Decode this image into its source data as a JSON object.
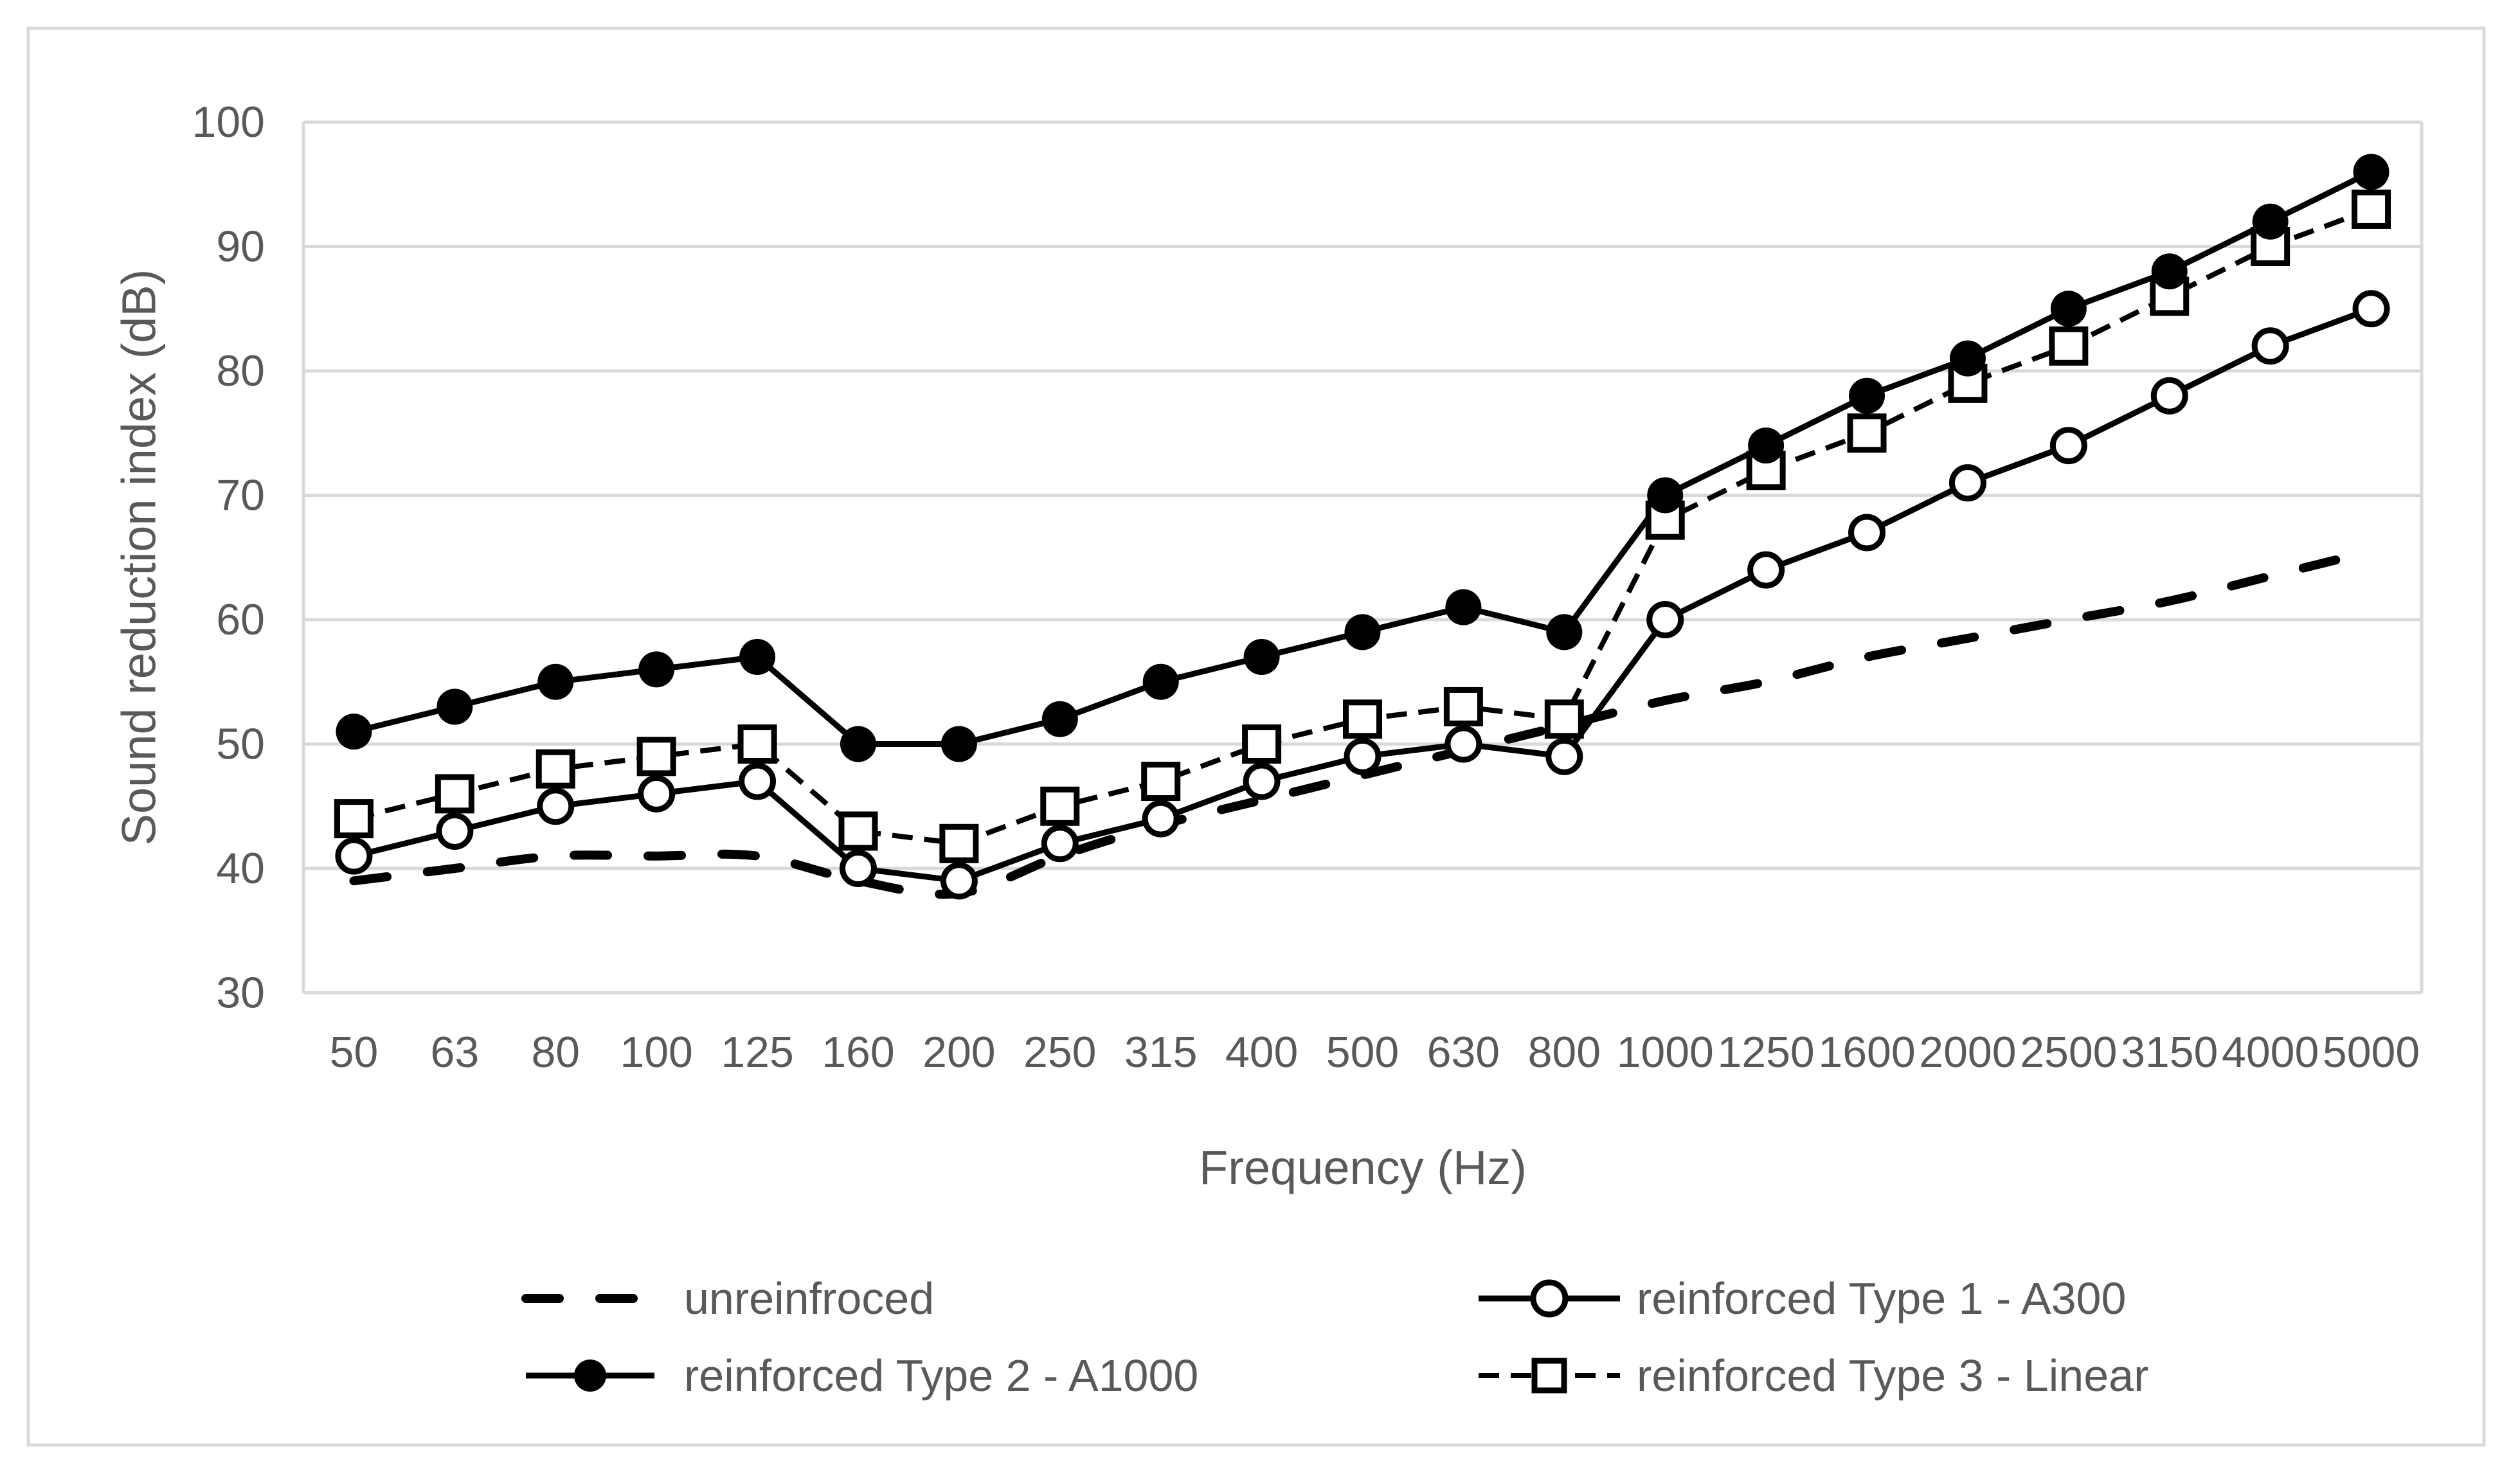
{
  "chart_data": {
    "type": "line",
    "title": "",
    "xlabel": "Frequency (Hz)",
    "ylabel": "Sound reduction index (dB)",
    "ylim": [
      30,
      100
    ],
    "yticks": [
      100,
      90,
      80,
      70,
      60,
      50,
      40,
      30
    ],
    "grid": "horizontal",
    "legend_position": "bottom",
    "text_color": "#595959",
    "grid_color": "#d9d9d9",
    "series_color": "#000000",
    "categories": [
      "50",
      "63",
      "80",
      "100",
      "125",
      "160",
      "200",
      "250",
      "315",
      "400",
      "500",
      "630",
      "800",
      "1000",
      "1250",
      "1600",
      "2000",
      "2500",
      "3150",
      "4000",
      "5000"
    ],
    "series": [
      {
        "name": "unreinfroced",
        "line": "dashed-thick",
        "marker": "none",
        "smooth": true,
        "values": [
          39,
          40,
          41,
          41,
          41,
          39,
          38,
          41,
          43.5,
          45.5,
          47.5,
          49.5,
          51.5,
          53.5,
          55,
          57,
          58.5,
          60,
          61.5,
          63.5,
          65.5
        ]
      },
      {
        "name": "reinforced Type 1 - A300",
        "line": "solid",
        "marker": "open-circle",
        "smooth": false,
        "values": [
          41,
          43,
          45,
          46,
          47,
          40,
          39,
          42,
          44,
          47,
          49,
          50,
          49,
          60,
          64,
          67,
          71,
          74,
          78,
          82,
          85
        ]
      },
      {
        "name": "reinforced Type 2 - A1000",
        "line": "solid",
        "marker": "filled-circle",
        "smooth": false,
        "values": [
          51,
          53,
          55,
          56,
          57,
          50,
          50,
          52,
          55,
          57,
          59,
          61,
          59,
          70,
          74,
          78,
          81,
          85,
          88,
          92,
          96
        ]
      },
      {
        "name": "reinforced Type 3 - Linear",
        "line": "dashed",
        "marker": "open-square",
        "smooth": false,
        "values": [
          44,
          46,
          48,
          49,
          50,
          43,
          42,
          45,
          47,
          50,
          52,
          53,
          52,
          68,
          72,
          75,
          79,
          82,
          86,
          90,
          93
        ]
      }
    ],
    "legend_rows": [
      [
        "unreinfroced",
        "reinforced Type 1 - A300"
      ],
      [
        "reinforced Type 2 - A1000",
        "reinforced Type 3 - Linear"
      ]
    ]
  }
}
